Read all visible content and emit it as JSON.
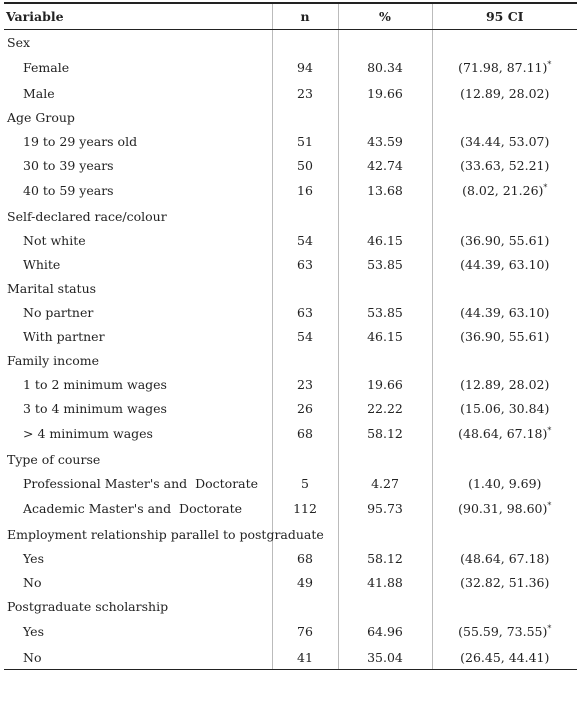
{
  "table": {
    "columns": [
      "Variable",
      "n",
      "%",
      "95 CI"
    ],
    "groups": [
      {
        "label": "Sex",
        "rows": [
          {
            "label": "Female",
            "n": "94",
            "pct": "80.34",
            "ci": "(71.98, 87.11)",
            "note": "*"
          },
          {
            "label": "Male",
            "n": "23",
            "pct": "19.66",
            "ci": "(12.89, 28.02)"
          }
        ]
      },
      {
        "label": "Age Group",
        "rows": [
          {
            "label": "19 to 29 years old",
            "n": "51",
            "pct": "43.59",
            "ci": "(34.44, 53.07)"
          },
          {
            "label": "30 to 39 years",
            "n": "50",
            "pct": "42.74",
            "ci": "(33.63, 52.21)"
          },
          {
            "label": "40 to 59 years",
            "n": "16",
            "pct": "13.68",
            "ci": "(8.02, 21.26)",
            "note": "*"
          }
        ]
      },
      {
        "label": "Self-declared race/colour",
        "rows": [
          {
            "label": "Not white",
            "n": "54",
            "pct": "46.15",
            "ci": "(36.90, 55.61)"
          },
          {
            "label": "White",
            "n": "63",
            "pct": "53.85",
            "ci": "(44.39, 63.10)"
          }
        ]
      },
      {
        "label": "Marital status",
        "rows": [
          {
            "label": "No partner",
            "n": "63",
            "pct": "53.85",
            "ci": "(44.39, 63.10)"
          },
          {
            "label": "With partner",
            "n": "54",
            "pct": "46.15",
            "ci": "(36.90, 55.61)"
          }
        ]
      },
      {
        "label": "Family income",
        "rows": [
          {
            "label": "1 to 2 minimum wages",
            "n": "23",
            "pct": "19.66",
            "ci": "(12.89, 28.02)"
          },
          {
            "label": "3 to 4 minimum wages",
            "n": "26",
            "pct": "22.22",
            "ci": "(15.06, 30.84)"
          },
          {
            "label": "> 4 minimum wages",
            "n": "68",
            "pct": "58.12",
            "ci": "(48.64, 67.18)",
            "note": "*"
          }
        ]
      },
      {
        "label": "Type of course",
        "rows": [
          {
            "label": "Professional Master's and  Doctorate",
            "n": "5",
            "pct": "4.27",
            "ci": "(1.40, 9.69)"
          },
          {
            "label": "Academic Master's and  Doctorate",
            "n": "112",
            "pct": "95.73",
            "ci": "(90.31, 98.60)",
            "note": "*"
          }
        ]
      },
      {
        "label": "Employment relationship parallel to postgraduate",
        "rows": [
          {
            "label": "Yes",
            "n": "68",
            "pct": "58.12",
            "ci": "(48.64, 67.18)"
          },
          {
            "label": "No",
            "n": "49",
            "pct": "41.88",
            "ci": "(32.82, 51.36)"
          }
        ]
      },
      {
        "label": "Postgraduate scholarship",
        "rows": [
          {
            "label": "Yes",
            "n": "76",
            "pct": "64.96",
            "ci": "(55.59, 73.55)",
            "note": "*"
          },
          {
            "label": "No",
            "n": "41",
            "pct": "35.04",
            "ci": "(26.45, 44.41)"
          }
        ]
      }
    ]
  }
}
